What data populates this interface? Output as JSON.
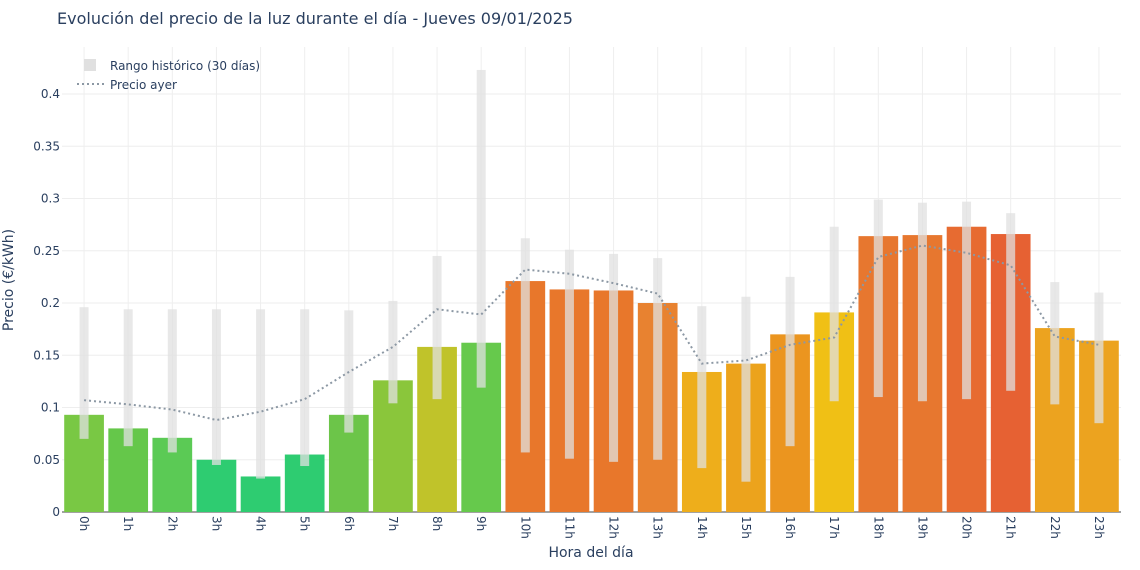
{
  "chart_data": {
    "type": "bar",
    "title": "Evolución del precio de la luz durante el día - Jueves 09/01/2025",
    "xlabel": "Hora del día",
    "ylabel": "Precio (€/kWh)",
    "ylim": [
      0,
      0.445
    ],
    "yticks": [
      0,
      0.05,
      0.1,
      0.15,
      0.2,
      0.25,
      0.3,
      0.35,
      0.4
    ],
    "ytick_labels": [
      "0",
      "0.05",
      "0.1",
      "0.15",
      "0.2",
      "0.25",
      "0.3",
      "0.35",
      "0.4"
    ],
    "grid": true,
    "legend_position": "top-left",
    "categories": [
      "0h",
      "1h",
      "2h",
      "3h",
      "4h",
      "5h",
      "6h",
      "7h",
      "8h",
      "9h",
      "10h",
      "11h",
      "12h",
      "13h",
      "14h",
      "15h",
      "16h",
      "17h",
      "18h",
      "19h",
      "20h",
      "21h",
      "22h",
      "23h"
    ],
    "series": [
      {
        "type": "bar",
        "values": [
          0.093,
          0.08,
          0.071,
          0.05,
          0.034,
          0.055,
          0.093,
          0.126,
          0.158,
          0.162,
          0.221,
          0.213,
          0.212,
          0.2,
          0.134,
          0.142,
          0.17,
          0.191,
          0.264,
          0.265,
          0.273,
          0.266,
          0.176,
          0.164
        ],
        "colors": [
          "#79c844",
          "#65c74a",
          "#5bca55",
          "#2ecc71",
          "#2ecc71",
          "#2ecc71",
          "#6cc549",
          "#8ac63b",
          "#c0c32a",
          "#66c94c",
          "#e8772b",
          "#e8772b",
          "#e8772b",
          "#e88230",
          "#eeae1b",
          "#eca31c",
          "#eb951f",
          "#f0c015",
          "#e7772f",
          "#e7772f",
          "#e76b31",
          "#e66133",
          "#eca31f",
          "#eca31f"
        ]
      },
      {
        "name": "Rango histórico (30 días)",
        "type": "range",
        "color": "#e0e0e0",
        "low": [
          0.07,
          0.063,
          0.057,
          0.045,
          0.032,
          0.044,
          0.076,
          0.104,
          0.108,
          0.119,
          0.057,
          0.051,
          0.048,
          0.05,
          0.042,
          0.029,
          0.063,
          0.106,
          0.11,
          0.106,
          0.108,
          0.116,
          0.103,
          0.085
        ],
        "high": [
          0.196,
          0.194,
          0.194,
          0.194,
          0.194,
          0.194,
          0.193,
          0.202,
          0.245,
          0.423,
          0.262,
          0.251,
          0.247,
          0.243,
          0.197,
          0.206,
          0.225,
          0.273,
          0.299,
          0.296,
          0.297,
          0.286,
          0.22,
          0.21
        ]
      },
      {
        "name": "Precio ayer",
        "type": "line",
        "color": "#8c98a4",
        "values": [
          0.107,
          0.103,
          0.098,
          0.088,
          0.096,
          0.108,
          0.134,
          0.158,
          0.194,
          0.189,
          0.232,
          0.228,
          0.219,
          0.209,
          0.142,
          0.145,
          0.16,
          0.167,
          0.244,
          0.255,
          0.248,
          0.236,
          0.168,
          0.16
        ]
      }
    ]
  }
}
